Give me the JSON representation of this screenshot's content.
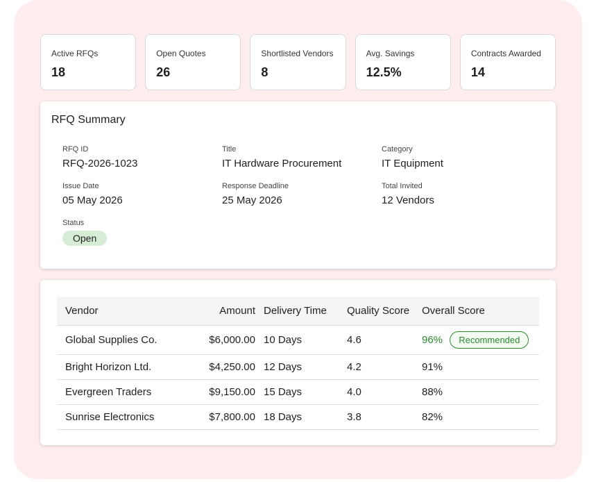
{
  "kpis": [
    {
      "label": "Active RFQs",
      "value": "18"
    },
    {
      "label": "Open Quotes",
      "value": "26"
    },
    {
      "label": "Shortlisted Vendors",
      "value": "8"
    },
    {
      "label": "Avg. Savings",
      "value": "12.5%"
    },
    {
      "label": "Contracts Awarded",
      "value": "14"
    }
  ],
  "summary": {
    "title": "RFQ Summary",
    "rfq_id": {
      "label": "RFQ ID",
      "value": "RFQ-2026-1023"
    },
    "rfq_title": {
      "label": "Title",
      "value": "IT Hardware Procurement"
    },
    "category": {
      "label": "Category",
      "value": "IT Equipment"
    },
    "issue_date": {
      "label": "Issue Date",
      "value": "05 May 2026"
    },
    "deadline": {
      "label": "Response Deadline",
      "value": "25 May 2026"
    },
    "invited": {
      "label": "Total Invited",
      "value": "12 Vendors"
    },
    "status": {
      "label": "Status",
      "value": "Open"
    }
  },
  "table": {
    "headers": [
      "Vendor",
      "Amount",
      "Delivery Time",
      "Quality Score",
      "Overall Score"
    ],
    "rows": [
      {
        "vendor": "Global Supplies Co.",
        "amount": "$6,000.00",
        "delivery": "10 Days",
        "quality": "4.6",
        "overall": "96%",
        "badge": "Recommended"
      },
      {
        "vendor": "Bright Horizon Ltd.",
        "amount": "$4,250.00",
        "delivery": "12 Days",
        "quality": "4.2",
        "overall": "91%"
      },
      {
        "vendor": "Evergreen Traders",
        "amount": "$9,150.00",
        "delivery": "15 Days",
        "quality": "4.0",
        "overall": "88%"
      },
      {
        "vendor": "Sunrise Electronics",
        "amount": "$7,800.00",
        "delivery": "18 Days",
        "quality": "3.8",
        "overall": "82%"
      }
    ]
  },
  "colors": {
    "background": "#fdedef",
    "accent_green": "#2b8a2b",
    "status_pill": "#d6ecd6"
  }
}
